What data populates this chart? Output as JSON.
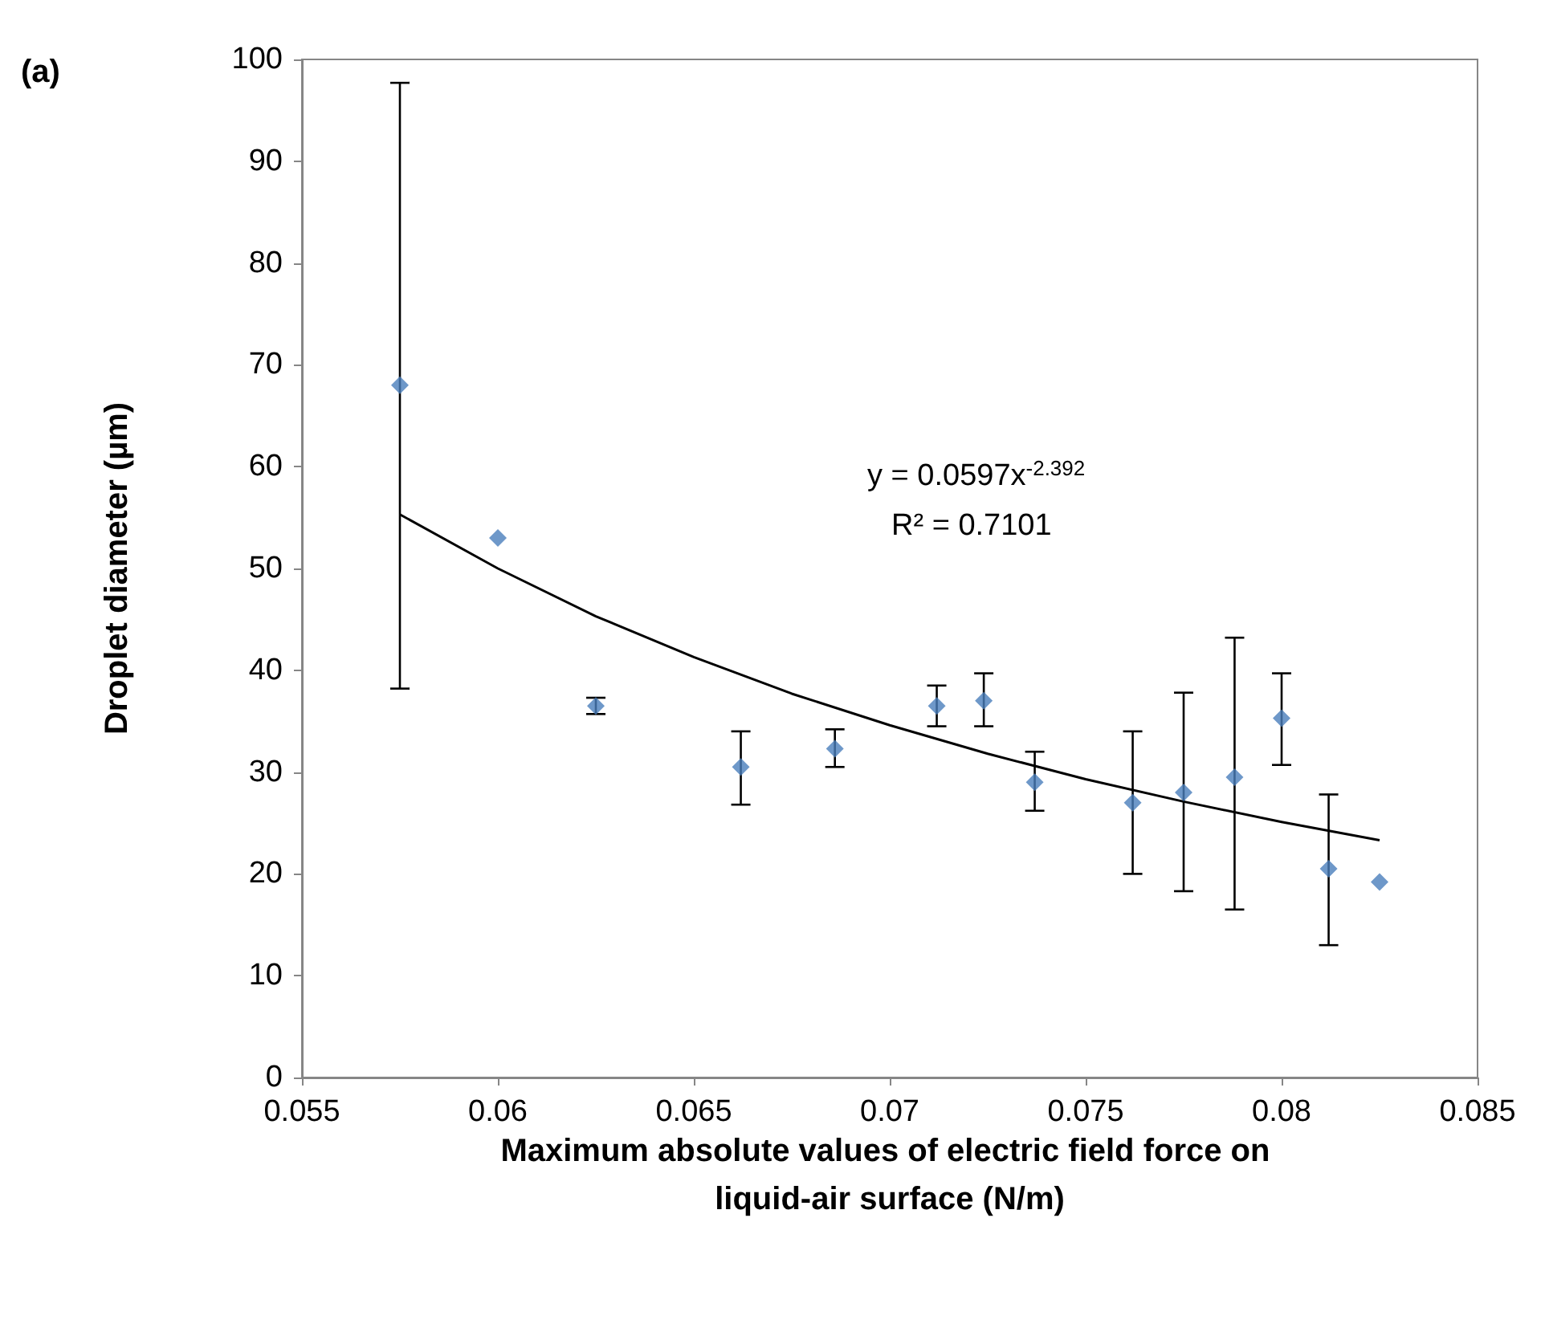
{
  "chart_data": {
    "type": "scatter",
    "title": "(a)",
    "xlabel": "Maximum absolute values of electric field force on liquid-air surface (N/m)",
    "ylabel": "Droplet diameter (µm)",
    "annotations": [
      "y = 0.0597x$^{-2.392}$",
      "R² = 0.7101"
    ],
    "series": [
      {
        "color": "#4a7ebb",
        "marker": "diamond",
        "x": [
          0.0575,
          0.06,
          0.0625,
          0.0662,
          0.0686,
          0.0712,
          0.0724,
          0.0737,
          0.0762,
          0.0775,
          0.0788,
          0.08,
          0.0812,
          0.0825
        ],
        "values": [
          68,
          53,
          36.5,
          30.5,
          32.3,
          36.5,
          37,
          29,
          27,
          28,
          29.5,
          35.3,
          20.5,
          19.2
        ],
        "errors": [
          [
            38.2,
            97.7
          ],
          null,
          [
            35.7,
            37.3
          ],
          [
            26.8,
            34
          ],
          [
            30.5,
            34.2
          ],
          [
            34.5,
            38.5
          ],
          [
            34.5,
            39.7
          ],
          [
            26.2,
            32
          ],
          [
            20,
            34
          ],
          [
            18.3,
            37.8
          ],
          [
            16.5,
            43.2
          ],
          [
            30.7,
            39.7
          ],
          [
            13,
            27.8
          ],
          null
        ]
      },
      {
        "type": "line",
        "color": "#000000",
        "marker": "none",
        "x": [
          0.0575,
          0.06,
          0.0625,
          0.065,
          0.0675,
          0.07,
          0.0725,
          0.075,
          0.0775,
          0.08,
          0.0825
        ],
        "values": [
          55.3,
          50.0,
          45.3,
          41.3,
          37.7,
          34.6,
          31.8,
          29.3,
          27.1,
          25.1,
          23.3
        ]
      }
    ],
    "xlim": [
      0.055,
      0.085
    ],
    "xticks": [
      0.055,
      0.06,
      0.065,
      0.07,
      0.075,
      0.08,
      0.085
    ],
    "ylim": [
      0,
      100
    ],
    "yticks": [
      0,
      10,
      20,
      30,
      40,
      50,
      60,
      70,
      80,
      90,
      100
    ],
    "grid": false
  }
}
